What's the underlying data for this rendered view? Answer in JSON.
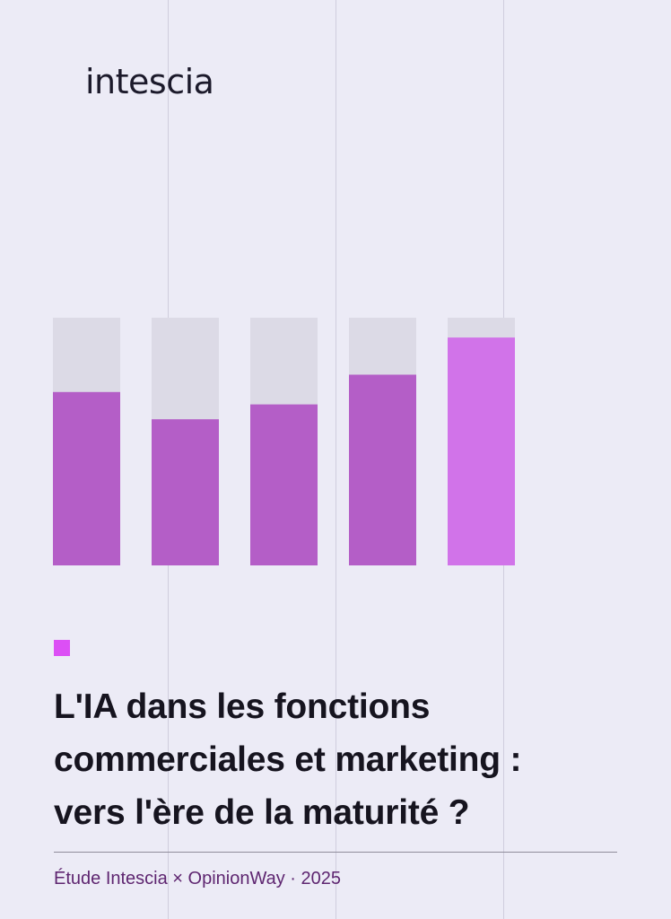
{
  "brand": {
    "logo_text": "intescia"
  },
  "colors": {
    "background": "#ecebf6",
    "bar_track": "#dcdae6",
    "bar_fill": "#b45ec7",
    "bar_fill_highlight": "#d173e9",
    "accent_square": "#dc4ff5",
    "title_text": "#16141f",
    "footer_text": "#5e2570"
  },
  "chart_data": {
    "type": "bar",
    "categories": [
      "",
      "",
      "",
      "",
      ""
    ],
    "values": [
      70,
      59,
      65,
      77,
      92
    ],
    "ylim": [
      0,
      100
    ],
    "highlight_index": 4,
    "grid": false,
    "legend": "none",
    "title": "",
    "xlabel": "",
    "ylabel": ""
  },
  "cover": {
    "title_lines": [
      "L'IA dans les fonctions",
      "commerciales et marketing :",
      "vers l'ère de la maturité ?"
    ],
    "subtitle": "Étude Intescia × OpinionWay · 2025"
  }
}
